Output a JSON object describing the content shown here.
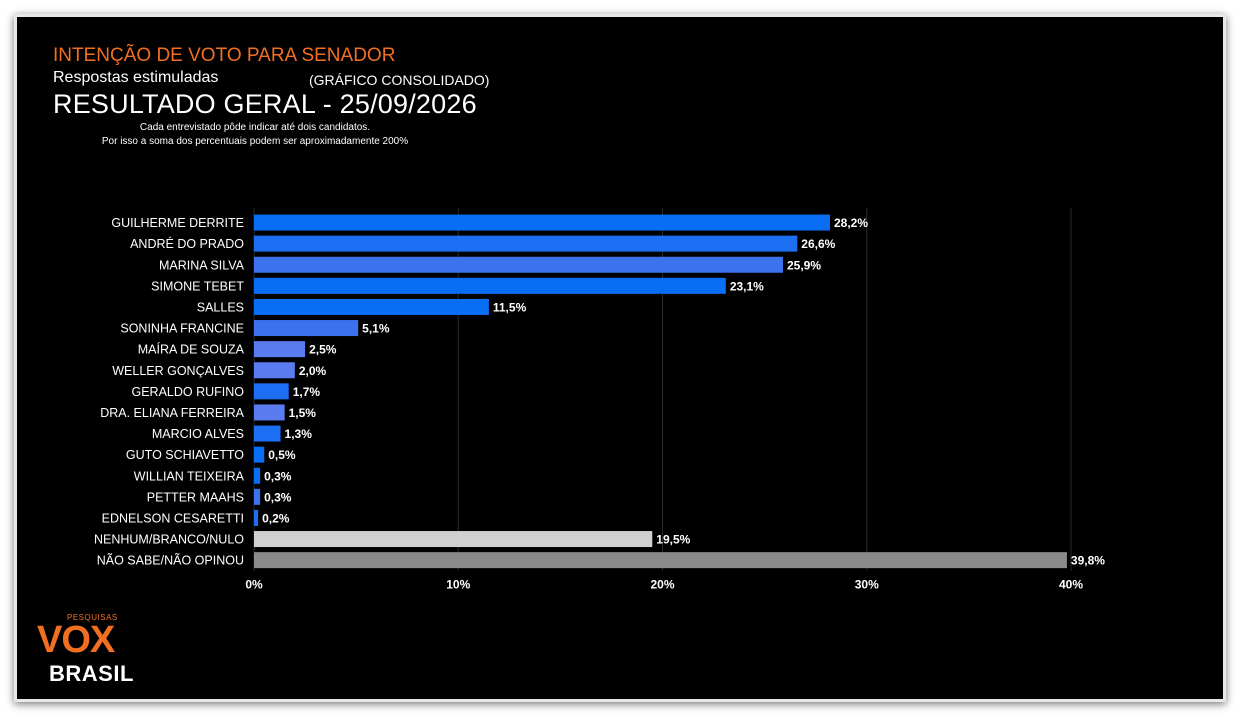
{
  "header": {
    "kicker": "INTENÇÃO DE VOTO PARA SENADOR",
    "subtitle": "Respostas estimuladas",
    "consolidated": "(GRÁFICO CONSOLIDADO)",
    "title": "RESULTADO GERAL - 25/09/2026",
    "note_line1": "Cada entrevistado pôde indicar até dois candidatos.",
    "note_line2": "Por isso a soma dos percentuais podem ser aproximadamente 200%"
  },
  "logo": {
    "small": "PESQUISAS",
    "vox": "VOX",
    "brasil": "BRASIL"
  },
  "chart_data": {
    "type": "bar",
    "orientation": "horizontal",
    "categories": [
      "GUILHERME DERRITE",
      "ANDRÉ DO PRADO",
      "MARINA SILVA",
      "SIMONE TEBET",
      "SALLES",
      "SONINHA FRANCINE",
      "MAÍRA DE SOUZA",
      "WELLER GONÇALVES",
      "GERALDO RUFINO",
      "DRA. ELIANA FERREIRA",
      "MARCIO ALVES",
      "GUTO SCHIAVETTO",
      "WILLIAN TEIXEIRA",
      "PETTER MAAHS",
      "EDNELSON CESARETTI",
      "NENHUM/BRANCO/NULO",
      "NÃO SABE/NÃO OPINOU"
    ],
    "values": [
      28.2,
      26.6,
      25.9,
      23.1,
      11.5,
      5.1,
      2.5,
      2.0,
      1.7,
      1.5,
      1.3,
      0.5,
      0.3,
      0.3,
      0.2,
      19.5,
      39.8
    ],
    "value_labels": [
      "28,2%",
      "26,6%",
      "25,9%",
      "23,1%",
      "11,5%",
      "5,1%",
      "2,5%",
      "2,0%",
      "1,7%",
      "1,5%",
      "1,3%",
      "0,5%",
      "0,3%",
      "0,3%",
      "0,2%",
      "19,5%",
      "39,8%"
    ],
    "bar_colors": [
      "#0a6ef5",
      "#1c6ff2",
      "#3d72ef",
      "#0a6ef5",
      "#0a6ef5",
      "#3d72ef",
      "#5a7cf0",
      "#5a7cf0",
      "#1c6ff2",
      "#5a7cf0",
      "#1c6ff2",
      "#0a6ef5",
      "#0a6ef5",
      "#3d72ef",
      "#1c6ff2",
      "#d0d0d0",
      "#8a8a8a"
    ],
    "xlim": [
      0,
      40
    ],
    "xticks": [
      0,
      10,
      20,
      30,
      40
    ],
    "xtick_labels": [
      "0%",
      "10%",
      "20%",
      "30%",
      "40%"
    ],
    "grid": true
  }
}
